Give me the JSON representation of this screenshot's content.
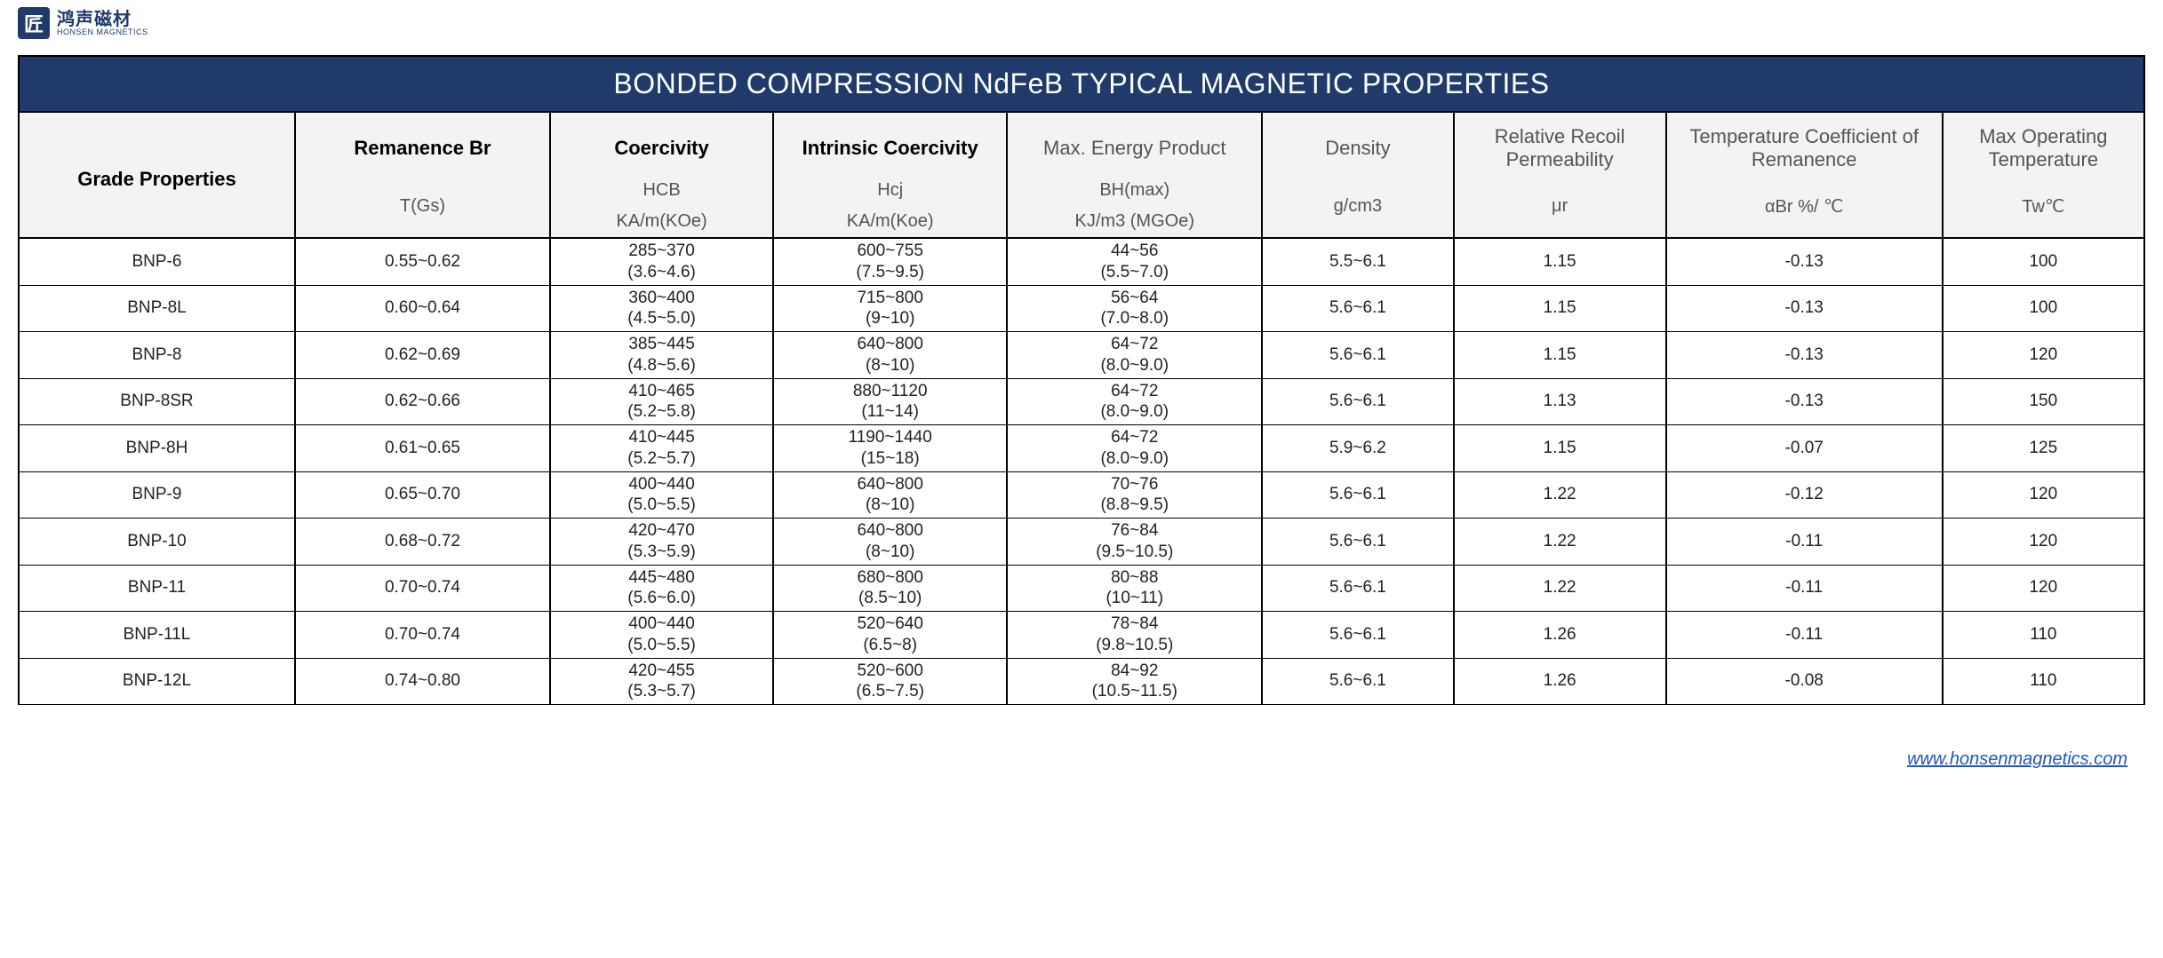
{
  "brand": {
    "icon_text": "匠",
    "cn": "鸿声磁材",
    "en": "HONSEN MAGNETICS",
    "icon_bg": "#1f3a6b",
    "icon_fg": "#ffffff"
  },
  "title": "BONDED COMPRESSION NdFeB TYPICAL MAGNETIC PROPERTIES",
  "title_bg": "#1f3a6b",
  "title_fg": "#ffffff",
  "header_bg": "#f3f3f3",
  "columns": [
    {
      "h1": "Grade Properties",
      "h2": "",
      "h3": "",
      "bold": true,
      "rowspan": 3
    },
    {
      "h1": "Remanence Br",
      "h2": "T(Gs)",
      "h3": "",
      "bold": true,
      "rowspan2": 2
    },
    {
      "h1": "Coercivity",
      "h2": "HCB",
      "h3": "KA/m(KOe)",
      "bold": true
    },
    {
      "h1": "Intrinsic Coercivity",
      "h2": "Hcj",
      "h3": "KA/m(Koe)",
      "bold": true
    },
    {
      "h1": "Max. Energy Product",
      "h2": "BH(max)",
      "h3": "KJ/m3 (MGOe)",
      "bold": false
    },
    {
      "h1": "Density",
      "h2": "g/cm3",
      "h3": "",
      "bold": false,
      "rowspan2": 2
    },
    {
      "h1": "Relative Recoil Permeability",
      "h2": "μr",
      "h3": "",
      "bold": false,
      "rowspan2": 2
    },
    {
      "h1": "Temperature Coefficient of Remanence",
      "h2": "αBr %/ ℃",
      "h3": "",
      "bold": false,
      "rowspan2": 2
    },
    {
      "h1": "Max Operating Temperature",
      "h2": "Tw℃",
      "h3": "",
      "bold": false,
      "rowspan2": 2
    }
  ],
  "rows": [
    {
      "grade": "BNP-6",
      "br": "0.55~0.62",
      "hcb_a": "285~370",
      "hcb_b": "(3.6~4.6)",
      "hcj_a": "600~755",
      "hcj_b": "(7.5~9.5)",
      "bh_a": "44~56",
      "bh_b": "(5.5~7.0)",
      "dens": "5.5~6.1",
      "ur": "1.15",
      "abr": "-0.13",
      "tw": "100"
    },
    {
      "grade": "BNP-8L",
      "br": "0.60~0.64",
      "hcb_a": "360~400",
      "hcb_b": "(4.5~5.0)",
      "hcj_a": "715~800",
      "hcj_b": "(9~10)",
      "bh_a": "56~64",
      "bh_b": "(7.0~8.0)",
      "dens": "5.6~6.1",
      "ur": "1.15",
      "abr": "-0.13",
      "tw": "100"
    },
    {
      "grade": "BNP-8",
      "br": "0.62~0.69",
      "hcb_a": "385~445",
      "hcb_b": "(4.8~5.6)",
      "hcj_a": "640~800",
      "hcj_b": "(8~10)",
      "bh_a": "64~72",
      "bh_b": "(8.0~9.0)",
      "dens": "5.6~6.1",
      "ur": "1.15",
      "abr": "-0.13",
      "tw": "120"
    },
    {
      "grade": "BNP-8SR",
      "br": "0.62~0.66",
      "hcb_a": "410~465",
      "hcb_b": "(5.2~5.8)",
      "hcj_a": "880~1120",
      "hcj_b": "(11~14)",
      "bh_a": "64~72",
      "bh_b": "(8.0~9.0)",
      "dens": "5.6~6.1",
      "ur": "1.13",
      "abr": "-0.13",
      "tw": "150"
    },
    {
      "grade": "BNP-8H",
      "br": "0.61~0.65",
      "hcb_a": "410~445",
      "hcb_b": "(5.2~5.7)",
      "hcj_a": "1190~1440",
      "hcj_b": "(15~18)",
      "bh_a": "64~72",
      "bh_b": "(8.0~9.0)",
      "dens": "5.9~6.2",
      "ur": "1.15",
      "abr": "-0.07",
      "tw": "125"
    },
    {
      "grade": "BNP-9",
      "br": "0.65~0.70",
      "hcb_a": "400~440",
      "hcb_b": "(5.0~5.5)",
      "hcj_a": "640~800",
      "hcj_b": "(8~10)",
      "bh_a": "70~76",
      "bh_b": "(8.8~9.5)",
      "dens": "5.6~6.1",
      "ur": "1.22",
      "abr": "-0.12",
      "tw": "120"
    },
    {
      "grade": "BNP-10",
      "br": "0.68~0.72",
      "hcb_a": "420~470",
      "hcb_b": "(5.3~5.9)",
      "hcj_a": "640~800",
      "hcj_b": "(8~10)",
      "bh_a": "76~84",
      "bh_b": "(9.5~10.5)",
      "dens": "5.6~6.1",
      "ur": "1.22",
      "abr": "-0.11",
      "tw": "120"
    },
    {
      "grade": "BNP-11",
      "br": "0.70~0.74",
      "hcb_a": "445~480",
      "hcb_b": "(5.6~6.0)",
      "hcj_a": "680~800",
      "hcj_b": "(8.5~10)",
      "bh_a": "80~88",
      "bh_b": "(10~11)",
      "dens": "5.6~6.1",
      "ur": "1.22",
      "abr": "-0.11",
      "tw": "120"
    },
    {
      "grade": "BNP-11L",
      "br": "0.70~0.74",
      "hcb_a": "400~440",
      "hcb_b": "(5.0~5.5)",
      "hcj_a": "520~640",
      "hcj_b": "(6.5~8)",
      "bh_a": "78~84",
      "bh_b": "(9.8~10.5)",
      "dens": "5.6~6.1",
      "ur": "1.26",
      "abr": "-0.11",
      "tw": "110"
    },
    {
      "grade": "BNP-12L",
      "br": "0.74~0.80",
      "hcb_a": "420~455",
      "hcb_b": "(5.3~5.7)",
      "hcj_a": "520~600",
      "hcj_b": "(6.5~7.5)",
      "bh_a": "84~92",
      "bh_b": "(10.5~11.5)",
      "dens": "5.6~6.1",
      "ur": "1.26",
      "abr": "-0.08",
      "tw": "110"
    }
  ],
  "footer": {
    "url_text": "www.honsenmagnetics.com",
    "url_href": "http://www.honsenmagnetics.com",
    "color": "#1f55c4"
  }
}
